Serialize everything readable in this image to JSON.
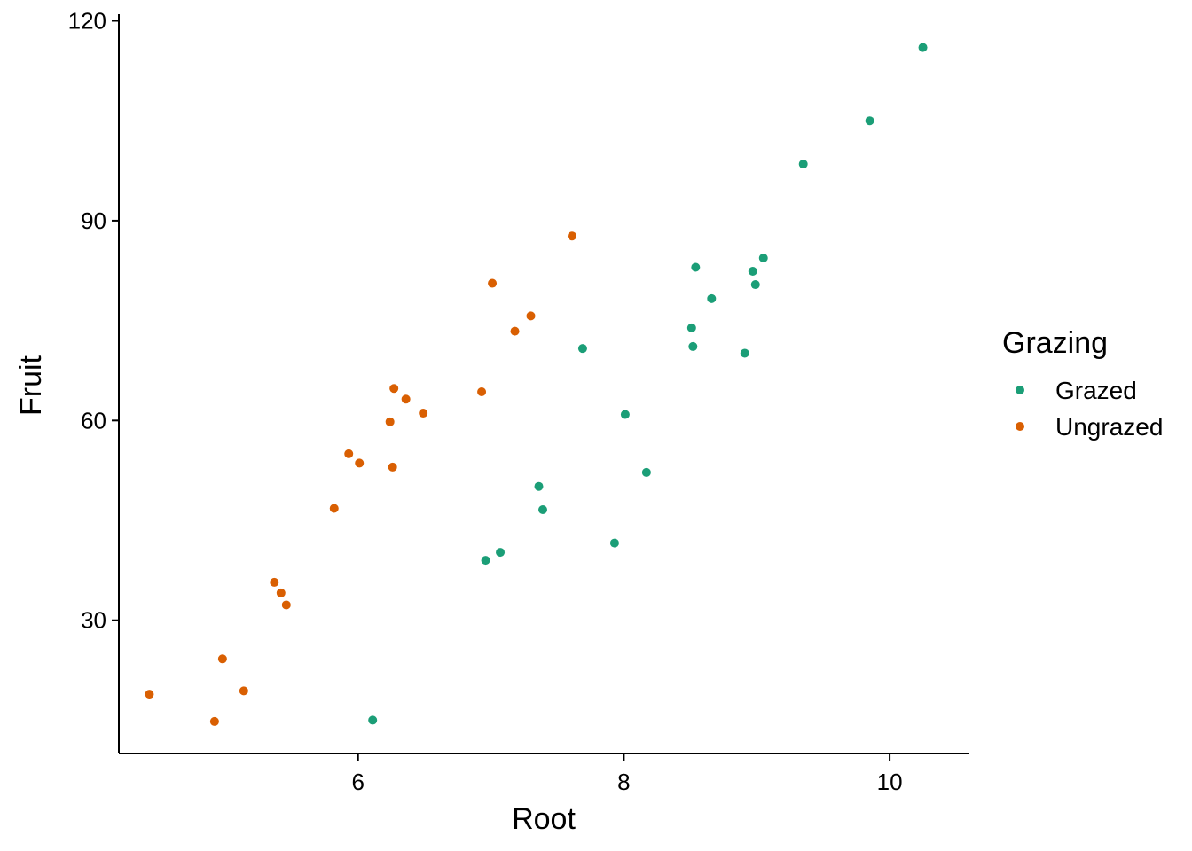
{
  "chart_data": {
    "type": "scatter",
    "xlabel": "Root",
    "ylabel": "Fruit",
    "xlim": [
      4.2,
      10.6
    ],
    "ylim": [
      10,
      121
    ],
    "xticks": [
      6,
      8,
      10
    ],
    "yticks": [
      30,
      60,
      90,
      120
    ],
    "grid": false,
    "legend": {
      "title": "Grazing",
      "placement": "right"
    },
    "series": [
      {
        "name": "Grazed",
        "color": "#1b9e77",
        "points": [
          {
            "x": 6.11,
            "y": 15.0
          },
          {
            "x": 6.96,
            "y": 39.0
          },
          {
            "x": 7.07,
            "y": 40.2
          },
          {
            "x": 7.36,
            "y": 50.1
          },
          {
            "x": 7.39,
            "y": 46.6
          },
          {
            "x": 7.69,
            "y": 70.8
          },
          {
            "x": 7.93,
            "y": 41.6
          },
          {
            "x": 8.01,
            "y": 60.9
          },
          {
            "x": 8.17,
            "y": 52.2
          },
          {
            "x": 8.51,
            "y": 73.9
          },
          {
            "x": 8.52,
            "y": 71.1
          },
          {
            "x": 8.54,
            "y": 83.0
          },
          {
            "x": 8.66,
            "y": 78.3
          },
          {
            "x": 8.91,
            "y": 70.1
          },
          {
            "x": 8.97,
            "y": 82.4
          },
          {
            "x": 8.99,
            "y": 80.4
          },
          {
            "x": 9.05,
            "y": 84.4
          },
          {
            "x": 9.35,
            "y": 98.5
          },
          {
            "x": 9.85,
            "y": 105.0
          },
          {
            "x": 10.25,
            "y": 116.0
          }
        ]
      },
      {
        "name": "Ungrazed",
        "color": "#d95f02",
        "points": [
          {
            "x": 4.43,
            "y": 18.9
          },
          {
            "x": 4.92,
            "y": 14.8
          },
          {
            "x": 4.98,
            "y": 24.2
          },
          {
            "x": 5.14,
            "y": 19.4
          },
          {
            "x": 5.37,
            "y": 35.7
          },
          {
            "x": 5.42,
            "y": 34.1
          },
          {
            "x": 5.46,
            "y": 32.3
          },
          {
            "x": 5.82,
            "y": 46.8
          },
          {
            "x": 5.93,
            "y": 55.0
          },
          {
            "x": 6.01,
            "y": 53.6
          },
          {
            "x": 6.24,
            "y": 59.8
          },
          {
            "x": 6.26,
            "y": 53.0
          },
          {
            "x": 6.27,
            "y": 64.8
          },
          {
            "x": 6.36,
            "y": 63.2
          },
          {
            "x": 6.49,
            "y": 61.1
          },
          {
            "x": 6.93,
            "y": 64.3
          },
          {
            "x": 7.01,
            "y": 80.6
          },
          {
            "x": 7.18,
            "y": 73.4
          },
          {
            "x": 7.3,
            "y": 75.7
          },
          {
            "x": 7.61,
            "y": 87.7
          }
        ]
      }
    ]
  }
}
